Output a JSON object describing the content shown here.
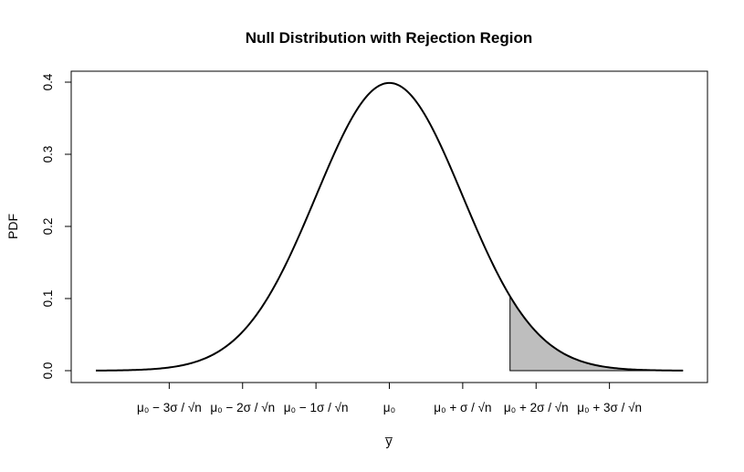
{
  "chart_data": {
    "type": "line",
    "title": "Null Distribution with Rejection Region",
    "xlabel": "y̅",
    "ylabel": "PDF",
    "xlim": [
      -4,
      4
    ],
    "ylim": [
      0,
      0.4
    ],
    "grid": false,
    "legend": "none",
    "series": [
      {
        "x": [
          -4,
          -3.5,
          -3,
          -2.5,
          -2,
          -1.5,
          -1,
          -0.5,
          0,
          0.5,
          1,
          1.5,
          2,
          2.5,
          3,
          3.5,
          4
        ],
        "values": [
          0.0001,
          0.0009,
          0.0044,
          0.0175,
          0.054,
          0.1295,
          0.242,
          0.3521,
          0.3989,
          0.3521,
          0.242,
          0.1295,
          0.054,
          0.0175,
          0.0044,
          0.0009,
          0.0001
        ]
      }
    ],
    "shaded_region": {
      "from": 1.645,
      "to": 4,
      "color": "#bebebe"
    },
    "x_ticks": [
      {
        "value": -3,
        "label": "μ₀ − 3σ / √n"
      },
      {
        "value": -2,
        "label": "μ₀ − 2σ / √n"
      },
      {
        "value": -1,
        "label": "μ₀ − 1σ / √n"
      },
      {
        "value": 0,
        "label": "μ₀"
      },
      {
        "value": 1,
        "label": "μ₀ + σ / √n"
      },
      {
        "value": 2,
        "label": "μ₀ + 2σ / √n"
      },
      {
        "value": 3,
        "label": "μ₀ + 3σ / √n"
      }
    ],
    "y_ticks": [
      {
        "value": 0.0,
        "label": "0.0"
      },
      {
        "value": 0.1,
        "label": "0.1"
      },
      {
        "value": 0.2,
        "label": "0.2"
      },
      {
        "value": 0.3,
        "label": "0.3"
      },
      {
        "value": 0.4,
        "label": "0.4"
      }
    ]
  }
}
